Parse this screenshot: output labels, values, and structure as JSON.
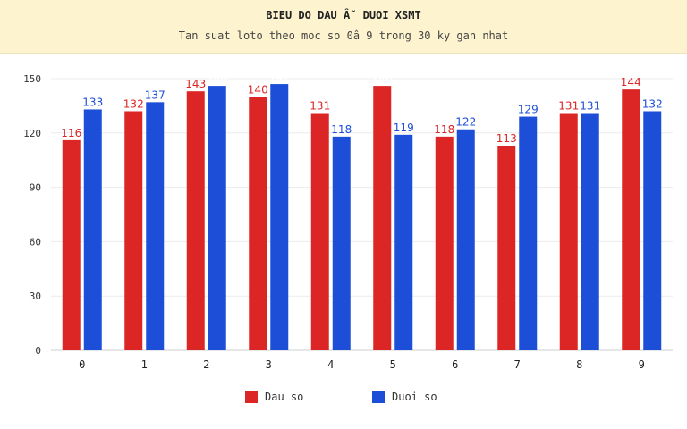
{
  "header": {
    "title": "BIEU DO DAU Â˜ DUOI XSMT",
    "subtitle": "Tan suat loto theo moc so 0â  9 trong 30 ky gan nhat"
  },
  "colors": {
    "dau": "#dc2626",
    "duoi": "#1d4ed8"
  },
  "chart_data": {
    "type": "bar",
    "title": "BIEU DO DAU Â˜ DUOI XSMT",
    "subtitle": "Tan suat loto theo moc so 0â  9 trong 30 ky gan nhat",
    "xlabel": "",
    "ylabel": "",
    "categories": [
      "0",
      "1",
      "2",
      "3",
      "4",
      "5",
      "6",
      "7",
      "8",
      "9"
    ],
    "series": [
      {
        "name": "Dau so",
        "values": [
          116,
          132,
          143,
          140,
          131,
          146,
          118,
          113,
          131,
          144
        ]
      },
      {
        "name": "Duoi so",
        "values": [
          133,
          137,
          146,
          147,
          118,
          119,
          122,
          129,
          131,
          132
        ]
      }
    ],
    "ylim": [
      0,
      150
    ],
    "yticks": [
      0,
      30,
      60,
      90,
      120,
      150
    ],
    "grid": true,
    "legend": "bottom"
  }
}
